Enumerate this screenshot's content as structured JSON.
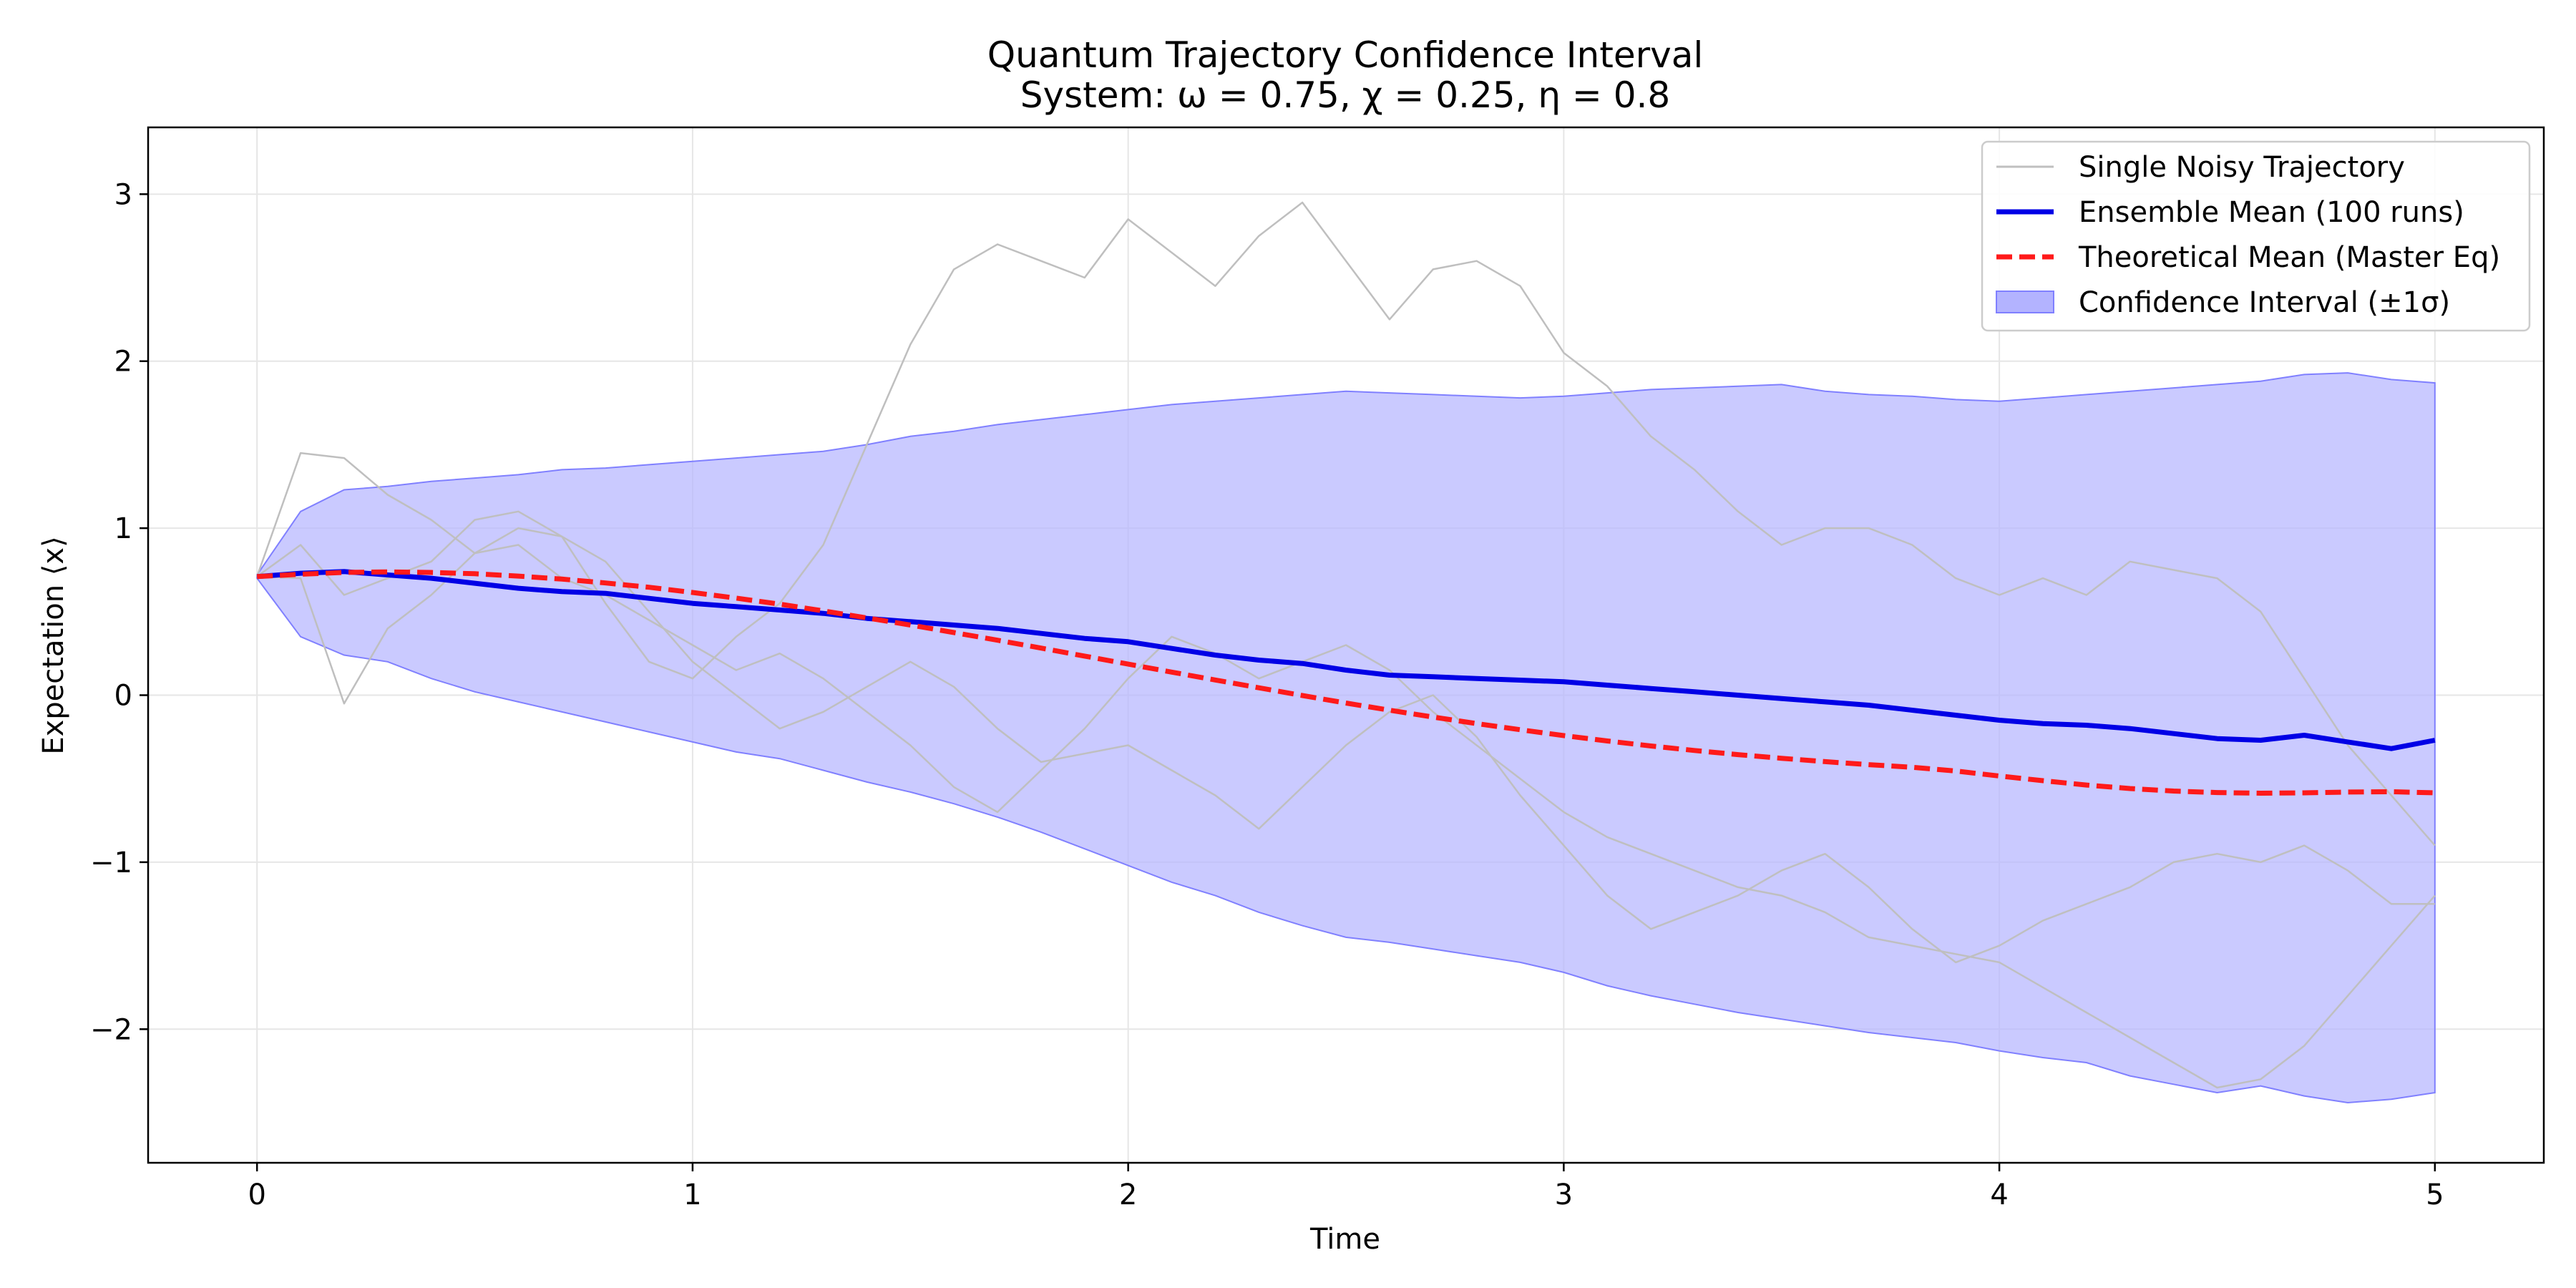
{
  "chart_data": {
    "type": "line",
    "title": "Quantum Trajectory Confidence Interval",
    "subtitle": "System: ω = 0.75, χ = 0.25, η = 0.8",
    "xlabel": "Time",
    "ylabel": "Expectation ⟨x⟩",
    "xlim": [
      -0.25,
      5.25
    ],
    "ylim": [
      -2.8,
      3.4
    ],
    "xticks": [
      0,
      1,
      2,
      3,
      4,
      5
    ],
    "xtick_labels": [
      "0",
      "1",
      "2",
      "3",
      "4",
      "5"
    ],
    "yticks": [
      -2,
      -1,
      0,
      1,
      2,
      3
    ],
    "ytick_labels": [
      "−2",
      "−1",
      "0",
      "1",
      "2",
      "3"
    ],
    "grid": true,
    "legend_position": "top-right",
    "legend": {
      "single": "Single Noisy Trajectory",
      "ensemble": "Ensemble Mean (100 runs)",
      "theory": "Theoretical Mean (Master Eq)",
      "band": "Confidence Interval (±1σ)"
    },
    "colors": {
      "single": "#bfbfbf",
      "ensemble": "#0000e6",
      "theory": "#ff1a1a",
      "band": "#b3b3ff",
      "band_edge": "#8080ff",
      "grid": "#e6e6e6",
      "axes": "#000000"
    },
    "x": [
      0,
      0.1,
      0.2,
      0.3,
      0.4,
      0.5,
      0.6,
      0.7,
      0.8,
      0.9,
      1.0,
      1.1,
      1.2,
      1.3,
      1.4,
      1.5,
      1.6,
      1.7,
      1.8,
      1.9,
      2.0,
      2.1,
      2.2,
      2.3,
      2.4,
      2.5,
      2.6,
      2.7,
      2.8,
      2.9,
      3.0,
      3.1,
      3.2,
      3.3,
      3.4,
      3.5,
      3.6,
      3.7,
      3.8,
      3.9,
      4.0,
      4.1,
      4.2,
      4.3,
      4.4,
      4.5,
      4.6,
      4.7,
      4.8,
      4.9,
      5.0
    ],
    "series": [
      {
        "name": "Ensemble Mean (100 runs)",
        "style": "solid",
        "values": [
          0.71,
          0.73,
          0.74,
          0.72,
          0.7,
          0.67,
          0.64,
          0.62,
          0.61,
          0.58,
          0.55,
          0.53,
          0.51,
          0.49,
          0.46,
          0.44,
          0.42,
          0.4,
          0.37,
          0.34,
          0.32,
          0.28,
          0.24,
          0.21,
          0.19,
          0.15,
          0.12,
          0.11,
          0.1,
          0.09,
          0.08,
          0.06,
          0.04,
          0.02,
          0.0,
          -0.02,
          -0.04,
          -0.06,
          -0.09,
          -0.12,
          -0.15,
          -0.17,
          -0.18,
          -0.2,
          -0.23,
          -0.26,
          -0.27,
          -0.24,
          -0.28,
          -0.32,
          -0.27
        ]
      },
      {
        "name": "Theoretical Mean (Master Eq)",
        "style": "dashed",
        "values": [
          0.71,
          0.724,
          0.735,
          0.738,
          0.735,
          0.727,
          0.713,
          0.695,
          0.672,
          0.646,
          0.615,
          0.581,
          0.545,
          0.505,
          0.463,
          0.42,
          0.375,
          0.329,
          0.282,
          0.234,
          0.186,
          0.138,
          0.091,
          0.044,
          -0.002,
          -0.047,
          -0.09,
          -0.131,
          -0.17,
          -0.207,
          -0.242,
          -0.274,
          -0.304,
          -0.331,
          -0.356,
          -0.378,
          -0.398,
          -0.416,
          -0.432,
          -0.454,
          -0.484,
          -0.512,
          -0.538,
          -0.559,
          -0.574,
          -0.583,
          -0.587,
          -0.585,
          -0.58,
          -0.578,
          -0.585
        ]
      },
      {
        "name": "CI Upper",
        "values": [
          0.72,
          1.1,
          1.23,
          1.25,
          1.28,
          1.3,
          1.32,
          1.35,
          1.36,
          1.38,
          1.4,
          1.42,
          1.44,
          1.46,
          1.5,
          1.55,
          1.58,
          1.62,
          1.65,
          1.68,
          1.71,
          1.74,
          1.76,
          1.78,
          1.8,
          1.82,
          1.81,
          1.8,
          1.79,
          1.78,
          1.79,
          1.81,
          1.83,
          1.84,
          1.85,
          1.86,
          1.82,
          1.8,
          1.79,
          1.77,
          1.76,
          1.78,
          1.8,
          1.82,
          1.84,
          1.86,
          1.88,
          1.92,
          1.93,
          1.89,
          1.87
        ]
      },
      {
        "name": "CI Lower",
        "values": [
          0.7,
          0.35,
          0.24,
          0.2,
          0.1,
          0.02,
          -0.04,
          -0.1,
          -0.16,
          -0.22,
          -0.28,
          -0.34,
          -0.38,
          -0.45,
          -0.52,
          -0.58,
          -0.65,
          -0.73,
          -0.82,
          -0.92,
          -1.02,
          -1.12,
          -1.2,
          -1.3,
          -1.38,
          -1.45,
          -1.48,
          -1.52,
          -1.56,
          -1.6,
          -1.66,
          -1.74,
          -1.8,
          -1.85,
          -1.9,
          -1.94,
          -1.98,
          -2.02,
          -2.05,
          -2.08,
          -2.13,
          -2.17,
          -2.2,
          -2.28,
          -2.33,
          -2.38,
          -2.34,
          -2.4,
          -2.44,
          -2.42,
          -2.38
        ]
      },
      {
        "name": "Single Noisy Trajectory",
        "style": "thin",
        "values": [
          0.71,
          1.45,
          1.42,
          1.2,
          1.05,
          0.85,
          0.9,
          0.7,
          0.6,
          0.45,
          0.3,
          0.15,
          0.25,
          0.1,
          -0.1,
          -0.3,
          -0.55,
          -0.7,
          -0.45,
          -0.2,
          0.1,
          0.35,
          0.25,
          0.1,
          0.2,
          0.3,
          0.15,
          -0.1,
          -0.3,
          -0.5,
          -0.7,
          -0.85,
          -0.95,
          -1.05,
          -1.15,
          -1.2,
          -1.3,
          -1.45,
          -1.5,
          -1.55,
          -1.6,
          -1.75,
          -1.9,
          -2.05,
          -2.2,
          -2.35,
          -2.3,
          -2.1,
          -1.8,
          -1.5,
          -1.2
        ]
      },
      {
        "name": "Single Noisy Trajectory",
        "style": "thin",
        "values": [
          0.71,
          0.7,
          -0.05,
          0.4,
          0.6,
          0.85,
          1.0,
          0.95,
          0.8,
          0.5,
          0.2,
          0.0,
          -0.2,
          -0.1,
          0.05,
          0.2,
          0.05,
          -0.2,
          -0.4,
          -0.35,
          -0.3,
          -0.45,
          -0.6,
          -0.8,
          -0.55,
          -0.3,
          -0.1,
          0.0,
          -0.25,
          -0.6,
          -0.9,
          -1.2,
          -1.4,
          -1.3,
          -1.2,
          -1.05,
          -0.95,
          -1.15,
          -1.4,
          -1.6,
          -1.5,
          -1.35,
          -1.25,
          -1.15,
          -1.0,
          -0.95,
          -1.0,
          -0.9,
          -1.05,
          -1.25,
          -1.25
        ]
      },
      {
        "name": "Single Noisy Trajectory",
        "style": "thin",
        "values": [
          0.71,
          0.9,
          0.6,
          0.7,
          0.8,
          1.05,
          1.1,
          0.95,
          0.55,
          0.2,
          0.1,
          0.35,
          0.55,
          0.9,
          1.5,
          2.1,
          2.55,
          2.7,
          2.6,
          2.5,
          2.85,
          2.65,
          2.45,
          2.75,
          2.95,
          2.6,
          2.25,
          2.55,
          2.6,
          2.45,
          2.05,
          1.85,
          1.55,
          1.35,
          1.1,
          0.9,
          1.0,
          1.0,
          0.9,
          0.7,
          0.6,
          0.7,
          0.6,
          0.8,
          0.75,
          0.7,
          0.5,
          0.1,
          -0.3,
          -0.6,
          -0.9
        ]
      }
    ]
  }
}
